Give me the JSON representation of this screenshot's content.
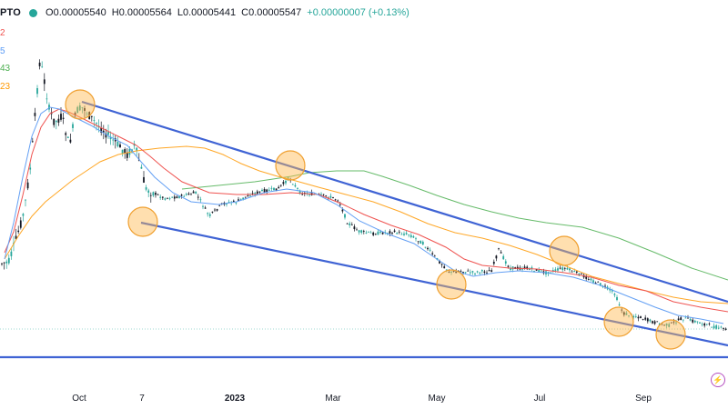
{
  "header": {
    "symbol": "PTO",
    "open": "O0.00005540",
    "high": "H0.00005564",
    "low": "L0.00005441",
    "close": "C0.00005547",
    "change": "+0.00000007 (+0.13%)"
  },
  "indicators": [
    {
      "label": "2",
      "color": "#ef5350"
    },
    {
      "label": "5",
      "color": "#5b9cf6"
    },
    {
      "label": "43",
      "color": "#4caf50"
    },
    {
      "label": "23",
      "color": "#ff9800"
    }
  ],
  "x_axis_labels": [
    "Oct",
    "7",
    "2023",
    "Mar",
    "May",
    "Jul",
    "Sep"
  ],
  "icons": {
    "flash": "lightning-icon"
  },
  "colors": {
    "up": "#26a69a",
    "down": "#131722",
    "trendline": "#2f5bd4",
    "highlight_fill": "rgba(255,183,77,0.45)",
    "highlight_stroke": "#f0a030"
  }
}
